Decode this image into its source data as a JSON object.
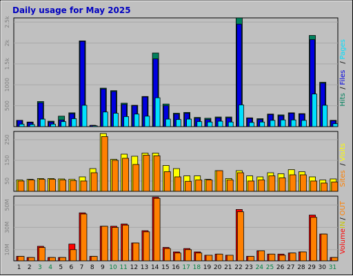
{
  "title": "Daily usage for May 2025",
  "colors": {
    "outer_bg": "#c0c0c0",
    "plot_bg": "#c0c0c0",
    "title": "#0000c0",
    "hits": "#00805c",
    "files": "#0000e0",
    "pages": "#00e0ff",
    "visits": "#ffff00",
    "sites": "#ff8000",
    "kbytes": "#ff0000",
    "in": "#c8c800",
    "out": "#ff8000",
    "weekend": "#008040",
    "axis_text": "#808080",
    "text": "#000000"
  },
  "chart_data": {
    "type": "bar",
    "title": "Daily usage for May 2025",
    "categories": [
      "1",
      "2",
      "3",
      "4",
      "5",
      "6",
      "7",
      "8",
      "9",
      "10",
      "11",
      "12",
      "13",
      "14",
      "15",
      "16",
      "17",
      "18",
      "19",
      "20",
      "21",
      "22",
      "23",
      "24",
      "25",
      "26",
      "27",
      "28",
      "29",
      "30",
      "31"
    ],
    "weekend_days": [
      "3",
      "4",
      "10",
      "11",
      "17",
      "18",
      "24",
      "25",
      "31"
    ],
    "panels": [
      {
        "name": "Hits_/Files/Pages",
        "ticks": [
          "2.5k",
          "2k",
          "1.5k",
          "1000",
          "500"
        ],
        "tick_values": [
          2500,
          2000,
          1500,
          1000,
          500
        ],
        "ylim": [
          0,
          2600
        ],
        "legend": [
          {
            "label": "Hits",
            "color": "#00805c"
          },
          {
            "label": "/",
            "color": "#000000"
          },
          {
            "label": "Files",
            "color": "#0000e0"
          },
          {
            "label": "/",
            "color": "#000000"
          },
          {
            "label": "Pages",
            "color": "#00e0ff"
          }
        ],
        "series": [
          {
            "name": "Hits",
            "color": "#00805c",
            "values": [
              150,
              110,
              600,
              130,
              250,
              330,
              2050,
              30,
              920,
              860,
              560,
              510,
              720,
              1760,
              540,
              320,
              340,
              220,
              200,
              230,
              230,
              2600,
              210,
              190,
              300,
              280,
              330,
              310,
              2180,
              1060,
              150
            ]
          },
          {
            "name": "Files",
            "color": "#0000e0",
            "values": [
              150,
              100,
              570,
              110,
              160,
              310,
              2040,
              30,
              900,
              840,
              530,
              500,
              710,
              1620,
              500,
              300,
              320,
              200,
              170,
              210,
              210,
              2450,
              200,
              170,
              290,
              260,
              320,
              300,
              2080,
              1040,
              140
            ]
          },
          {
            "name": "Pages",
            "color": "#00e0ff",
            "values": [
              60,
              50,
              180,
              60,
              120,
              190,
              510,
              20,
              350,
              320,
              240,
              300,
              250,
              690,
              180,
              170,
              180,
              120,
              110,
              130,
              110,
              520,
              100,
              110,
              150,
              160,
              160,
              150,
              780,
              510,
              70
            ]
          }
        ]
      },
      {
        "name": "Visits/Sites",
        "ticks": [
          "250",
          "150",
          "50"
        ],
        "tick_values": [
          250,
          150,
          50
        ],
        "ylim": [
          0,
          290
        ],
        "legend": [
          {
            "label": "Sites",
            "color": "#ff8000"
          },
          {
            "label": "/",
            "color": "#000000"
          },
          {
            "label": "Visits",
            "color": "#ffff00"
          }
        ],
        "series": [
          {
            "name": "Visits",
            "color": "#ffff00",
            "values": [
              55,
              58,
              62,
              62,
              60,
              58,
              70,
              110,
              280,
              155,
              180,
              170,
              185,
              185,
              125,
              110,
              75,
              75,
              58,
              100,
              62,
              100,
              75,
              70,
              90,
              85,
              105,
              95,
              70,
              55,
              60
            ]
          },
          {
            "name": "Sites",
            "color": "#ff8000",
            "values": [
              50,
              55,
              58,
              58,
              55,
              52,
              50,
              90,
              265,
              150,
              160,
              130,
              175,
              172,
              95,
              70,
              48,
              55,
              55,
              100,
              55,
              90,
              50,
              55,
              75,
              65,
              80,
              80,
              50,
              40,
              45
            ]
          }
        ]
      },
      {
        "name": "Volume IN/OUT",
        "ticks": [
          "50M",
          "30M",
          "10M"
        ],
        "tick_values": [
          50,
          30,
          10
        ],
        "ylim": [
          0,
          58
        ],
        "legend": [
          {
            "label": "Volume",
            "color": "#ff0000"
          },
          {
            "label": "IN",
            "color": "#c8c800"
          },
          {
            "label": "/",
            "color": "#000000"
          },
          {
            "label": "OUT",
            "color": "#ff8000"
          }
        ],
        "series": [
          {
            "name": "Volume",
            "color": "#ff0000",
            "values": [
              4,
              3,
              13,
              3,
              3,
              15,
              43,
              4,
              31,
              31,
              33,
              16,
              27,
              57,
              12,
              8,
              11,
              8,
              5,
              6,
              5,
              46,
              4,
              9,
              6,
              6,
              7,
              8,
              41,
              24,
              3
            ]
          },
          {
            "name": "OUT",
            "color": "#ff8000",
            "values": [
              4,
              3,
              12,
              3,
              3,
              10,
              42,
              4,
              31,
              30,
              32,
              16,
              26,
              56,
              11,
              7,
              10,
              7,
              5,
              6,
              5,
              44,
              4,
              9,
              6,
              5,
              7,
              8,
              39,
              24,
              3
            ]
          }
        ]
      }
    ]
  }
}
